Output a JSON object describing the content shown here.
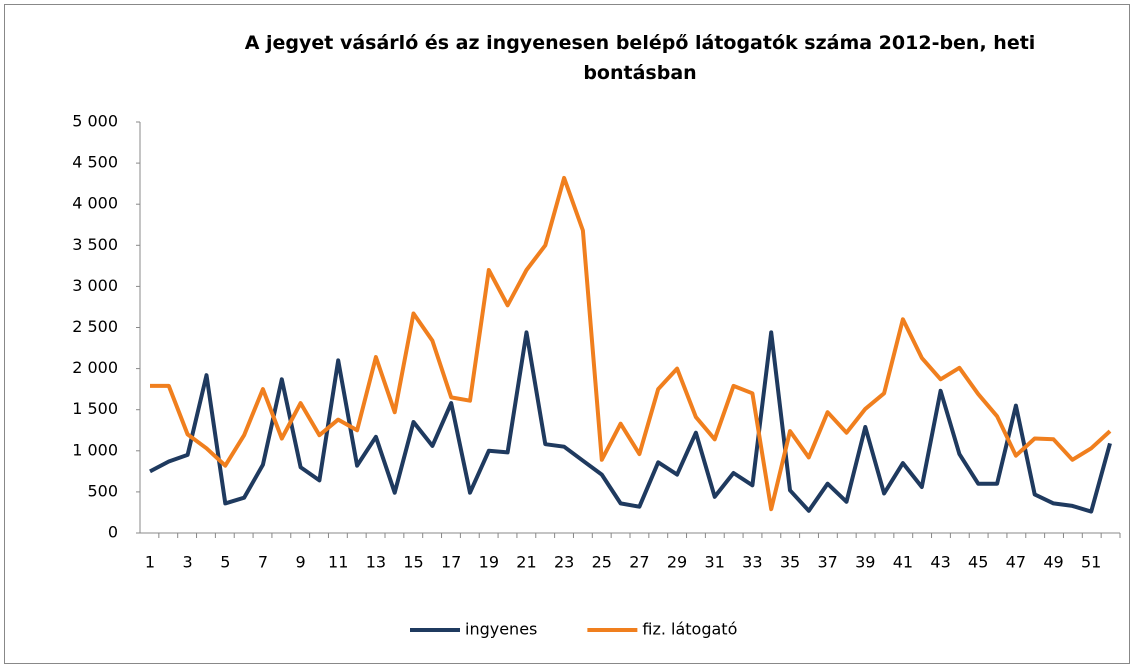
{
  "chart_data": {
    "type": "line",
    "title": "A jegyet vásárló és az ingyenesen belépő látogatók száma 2012-ben, heti bontásban",
    "categories": [
      1,
      null,
      3,
      null,
      5,
      null,
      7,
      null,
      9,
      null,
      11,
      null,
      13,
      null,
      15,
      null,
      17,
      null,
      19,
      null,
      21,
      null,
      23,
      null,
      25,
      null,
      27,
      null,
      29,
      null,
      31,
      null,
      33,
      null,
      35,
      null,
      37,
      null,
      39,
      null,
      41,
      null,
      43,
      null,
      45,
      null,
      47,
      null,
      49,
      null,
      51,
      null
    ],
    "series": [
      {
        "name": "ingyenes",
        "color": "#1f3a5f",
        "values": [
          750,
          870,
          950,
          1920,
          360,
          430,
          830,
          1870,
          800,
          640,
          2100,
          820,
          1170,
          490,
          1350,
          1060,
          1580,
          490,
          1000,
          980,
          2440,
          1080,
          1050,
          880,
          710,
          360,
          320,
          860,
          710,
          1220,
          440,
          730,
          580,
          2440,
          520,
          270,
          600,
          380,
          1290,
          480,
          850,
          560,
          1730,
          960,
          600,
          600,
          1550,
          470,
          360,
          330,
          260,
          1090
        ]
      },
      {
        "name": "fiz. látogató",
        "color": "#f07f1e",
        "values": [
          1790,
          1790,
          1200,
          1030,
          820,
          1190,
          1750,
          1150,
          1580,
          1190,
          1380,
          1250,
          2140,
          1470,
          2670,
          2340,
          1650,
          1610,
          3200,
          2770,
          3200,
          3500,
          4320,
          3680,
          890,
          1330,
          960,
          1750,
          2000,
          1410,
          1140,
          1790,
          1700,
          290,
          1240,
          920,
          1470,
          1220,
          1510,
          1700,
          2600,
          2130,
          1870,
          2010,
          1690,
          1420,
          940,
          1150,
          1140,
          890,
          1030,
          1240
        ]
      }
    ],
    "ylim": [
      0,
      5000
    ],
    "yticks": [
      0,
      500,
      {
        "value": 1000,
        "label": "1 000"
      },
      {
        "value": 1500,
        "label": "1 500"
      },
      {
        "value": 2000,
        "label": "2 000"
      },
      {
        "value": 2500,
        "label": "2 500"
      },
      {
        "value": 3000,
        "label": "3 000"
      },
      {
        "value": 3500,
        "label": "3 500"
      },
      {
        "value": 4000,
        "label": "4 000"
      },
      {
        "value": 4500,
        "label": "4 500"
      },
      {
        "value": 5000,
        "label": "5 000"
      }
    ],
    "legend": "bottom"
  }
}
